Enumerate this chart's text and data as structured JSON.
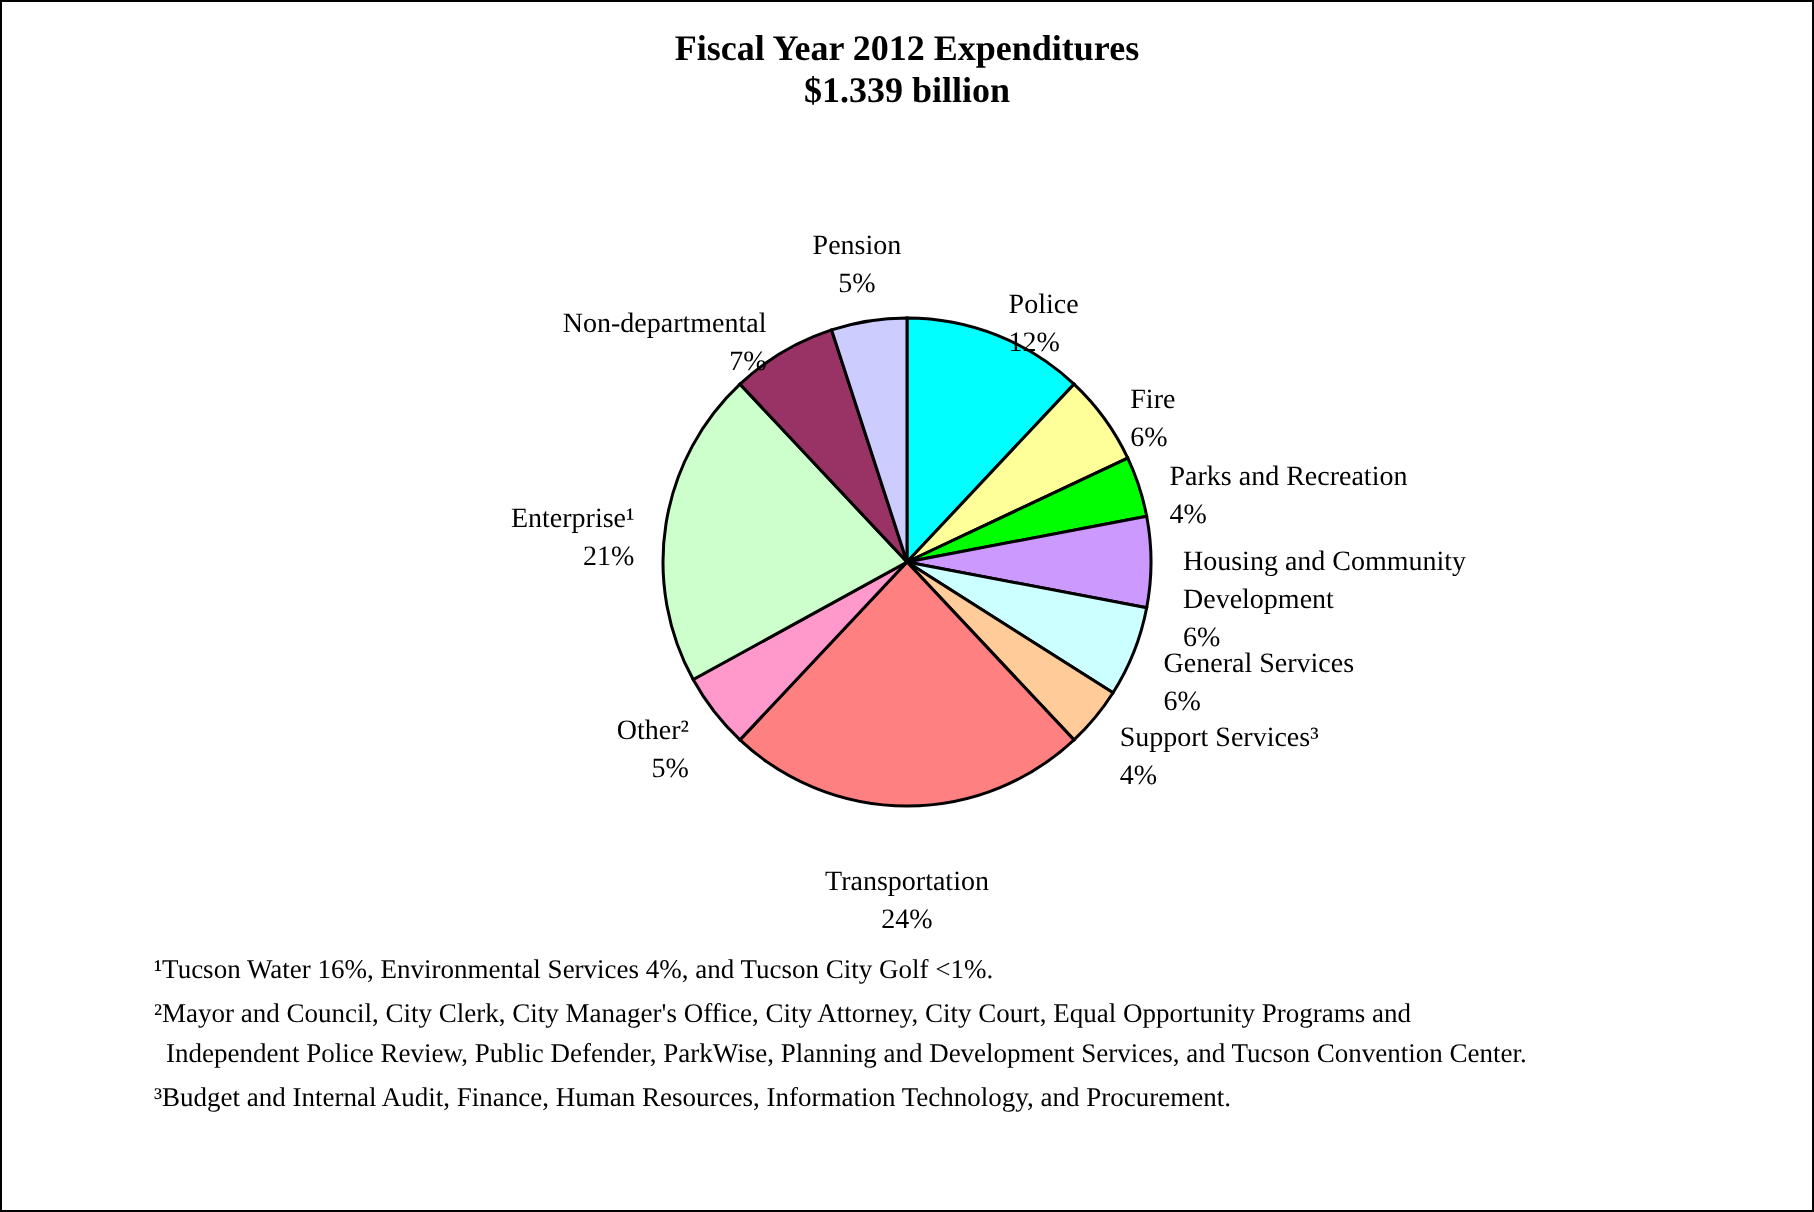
{
  "chart_data": {
    "type": "pie",
    "title": "Fiscal Year 2012 Expenditures",
    "subtitle": "$1.339 billion",
    "categories": [
      "Police",
      "Fire",
      "Parks and Recreation",
      "Housing and Community Development",
      "General Services",
      "Support Services³",
      "Transportation",
      "Other²",
      "Enterprise¹",
      "Non-departmental",
      "Pension"
    ],
    "values": [
      12,
      6,
      4,
      6,
      6,
      4,
      24,
      5,
      21,
      7,
      5
    ],
    "colors": [
      "#00ffff",
      "#ffff99",
      "#00ff00",
      "#cc99ff",
      "#ccffff",
      "#ffcc99",
      "#ff8080",
      "#ff99cc",
      "#ccffcc",
      "#993366",
      "#ccccff"
    ],
    "value_labels": [
      "12%",
      "6%",
      "4%",
      "6%",
      "6%",
      "4%",
      "24%",
      "5%",
      "21%",
      "7%",
      "5%"
    ],
    "annotations": [
      "¹Tucson Water 16%, Environmental Services 4%, and Tucson City Golf <1%.",
      "²Mayor and Council, City Clerk, City Manager's Office, City Attorney, City Court, Equal Opportunity Programs and Independent Police Review, Public Defender, ParkWise, Planning and Development Services, and Tucson Convention Center.",
      "³Budget and Internal Audit, Finance, Human Resources, Information Technology, and Procurement."
    ]
  }
}
